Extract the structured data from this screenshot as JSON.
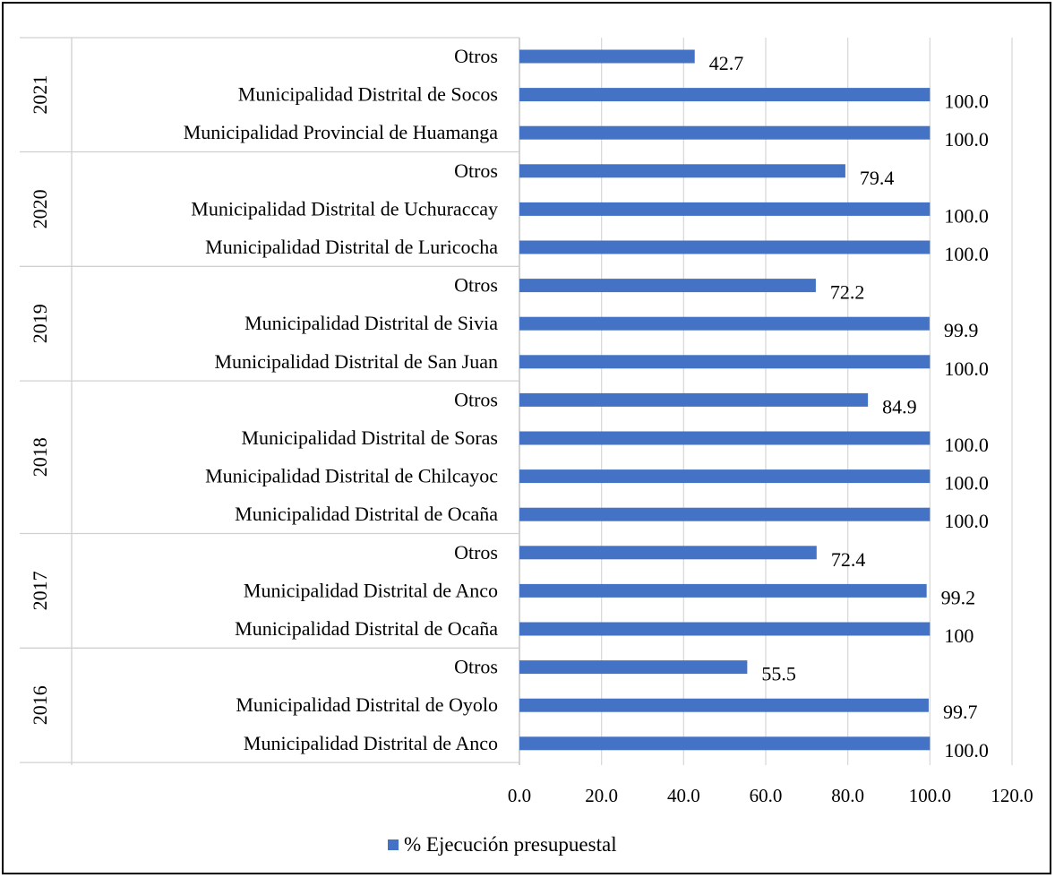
{
  "chart_data": {
    "type": "bar",
    "orientation": "horizontal",
    "title": "",
    "xlim": [
      0,
      120
    ],
    "x_ticks": [
      "0.0",
      "20.0",
      "40.0",
      "60.0",
      "80.0",
      "100.0",
      "120.0"
    ],
    "grid": "vertical",
    "legend": {
      "position": "bottom",
      "label": "% Ejecución presupuestal",
      "color": "#4472C4"
    },
    "bar_color": "#4472C4",
    "groups": [
      {
        "year": "2021",
        "items": [
          {
            "label": "Otros",
            "value": 42.7,
            "value_label": "42.7"
          },
          {
            "label": "Municipalidad Distrital de Socos",
            "value": 100.0,
            "value_label": "100.0"
          },
          {
            "label": "Municipalidad Provincial de Huamanga",
            "value": 100.0,
            "value_label": "100.0"
          }
        ]
      },
      {
        "year": "2020",
        "items": [
          {
            "label": "Otros",
            "value": 79.4,
            "value_label": "79.4"
          },
          {
            "label": "Municipalidad Distrital de Uchuraccay",
            "value": 100.0,
            "value_label": "100.0"
          },
          {
            "label": "Municipalidad Distrital de Luricocha",
            "value": 100.0,
            "value_label": "100.0"
          }
        ]
      },
      {
        "year": "2019",
        "items": [
          {
            "label": "Otros",
            "value": 72.2,
            "value_label": "72.2"
          },
          {
            "label": "Municipalidad Distrital de Sivia",
            "value": 99.9,
            "value_label": "99.9"
          },
          {
            "label": "Municipalidad Distrital de San Juan",
            "value": 100.0,
            "value_label": "100.0"
          }
        ]
      },
      {
        "year": "2018",
        "items": [
          {
            "label": "Otros",
            "value": 84.9,
            "value_label": "84.9"
          },
          {
            "label": "Municipalidad Distrital de Soras",
            "value": 100.0,
            "value_label": "100.0"
          },
          {
            "label": "Municipalidad Distrital de Chilcayoc",
            "value": 100.0,
            "value_label": "100.0"
          },
          {
            "label": "Municipalidad Distrital de Ocaña",
            "value": 100.0,
            "value_label": "100.0"
          }
        ]
      },
      {
        "year": "2017",
        "items": [
          {
            "label": "Otros",
            "value": 72.4,
            "value_label": "72.4"
          },
          {
            "label": "Municipalidad Distrital de Anco",
            "value": 99.2,
            "value_label": "99.2"
          },
          {
            "label": "Municipalidad Distrital de Ocaña",
            "value": 100,
            "value_label": "100"
          }
        ]
      },
      {
        "year": "2016",
        "items": [
          {
            "label": "Otros",
            "value": 55.5,
            "value_label": "55.5"
          },
          {
            "label": "Municipalidad Distrital de Oyolo",
            "value": 99.7,
            "value_label": "99.7"
          },
          {
            "label": "Municipalidad Distrital de Anco",
            "value": 100.0,
            "value_label": "100.0"
          }
        ]
      }
    ]
  }
}
